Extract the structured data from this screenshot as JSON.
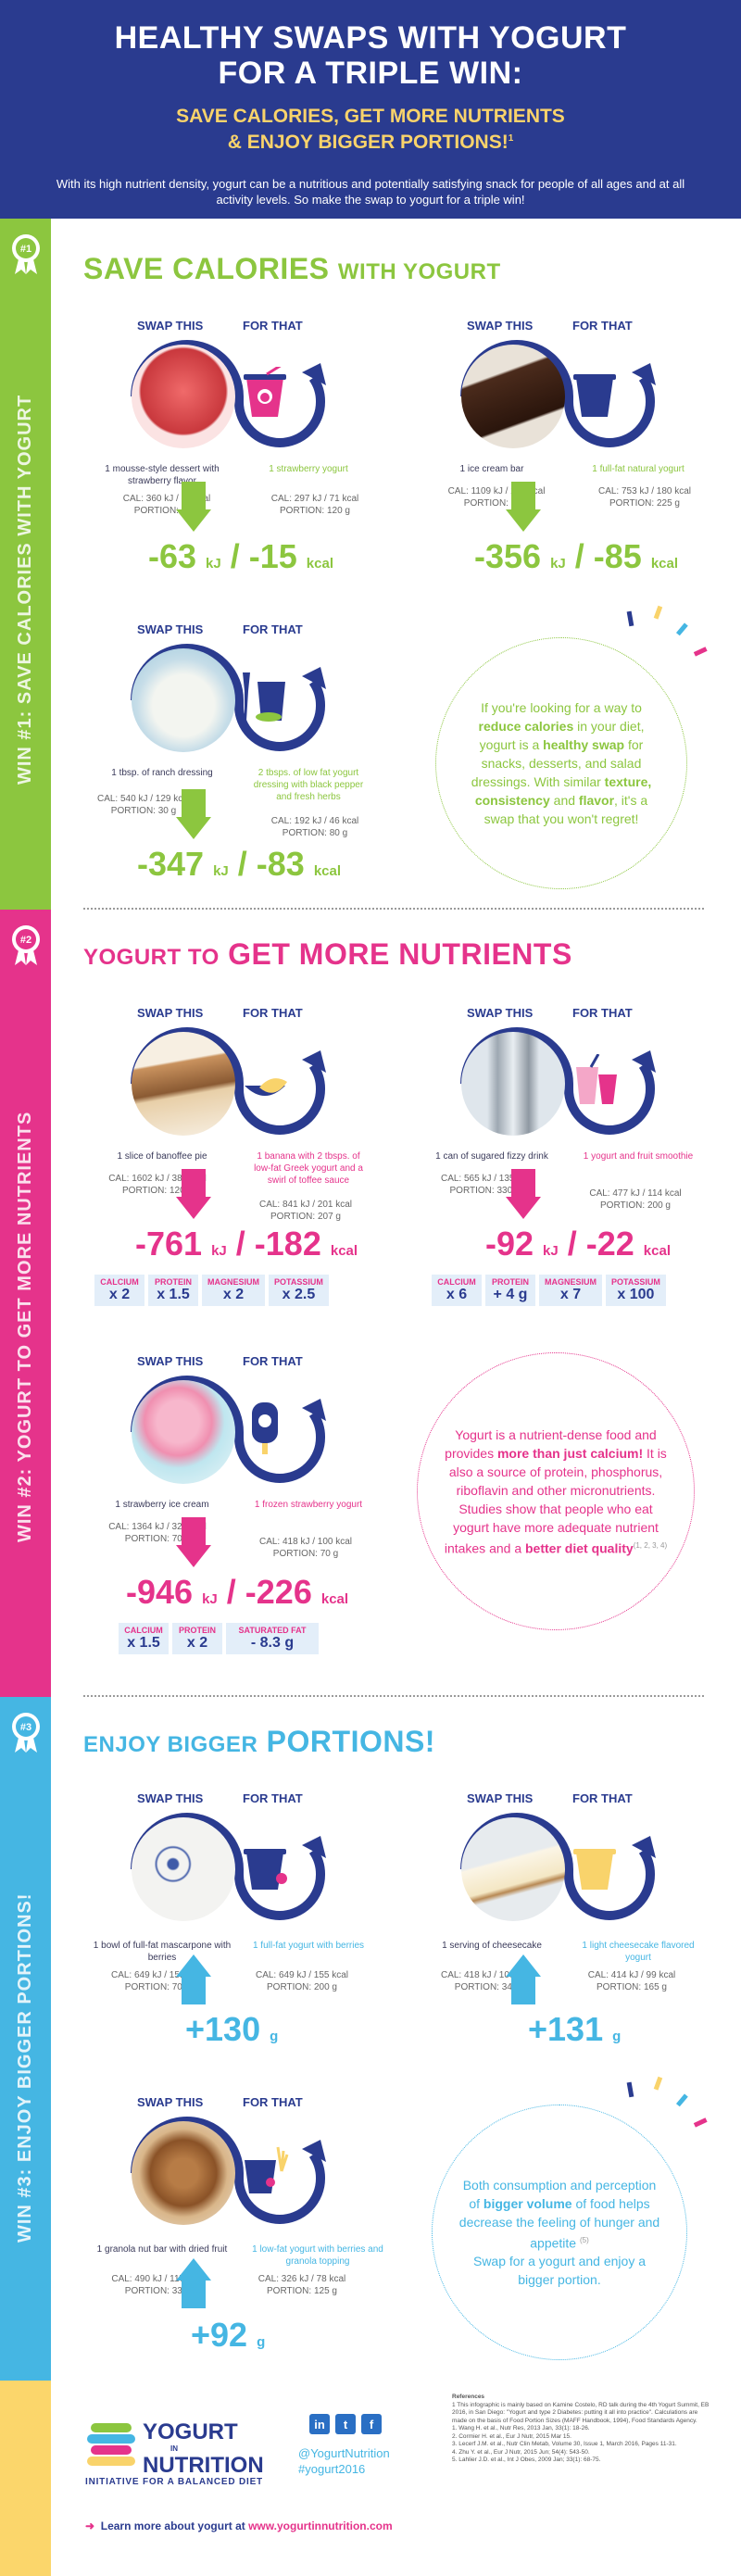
{
  "header": {
    "title_line1": "HEALTHY SWAPS WITH YOGURT",
    "title_line2": "FOR A TRIPLE WIN:",
    "subtitle_line1": "SAVE CALORIES, GET MORE NUTRIENTS",
    "subtitle_line2": "& ENJOY BIGGER PORTIONS!",
    "subtitle_sup": "1",
    "intro": "With its high nutrient density, yogurt can be a nutritious and potentially satisfying snack for people of all ages and at all activity levels. So make the swap to yogurt for a triple win!"
  },
  "labels": {
    "swap_this": "SWAP THIS",
    "for_that": "FOR THAT"
  },
  "sections": [
    {
      "badge": "#1",
      "sidebar": "WIN #1: SAVE CALORIES WITH YOGURT",
      "title_main": "SAVE CALORIES",
      "title_rest": "WITH YOGURT",
      "color": "#8cc63f",
      "swaps": [
        {
          "from": "1 mousse-style dessert with strawberry flavor",
          "to": "1 strawberry yogurt",
          "from_stats": [
            "CAL: 360 kJ / 86 kcal",
            "PORTION: 60 g"
          ],
          "to_stats": [
            "CAL: 297 kJ / 71 kcal",
            "PORTION: 120 g"
          ],
          "kj": "-63",
          "kcal": "-15"
        },
        {
          "from": "1 ice cream bar",
          "to": "1 full-fat natural yogurt",
          "from_stats": [
            "CAL: 1109 kJ / 265 kcal",
            "PORTION: 79 g"
          ],
          "to_stats": [
            "CAL: 753 kJ / 180 kcal",
            "PORTION: 225 g"
          ],
          "kj": "-356",
          "kcal": "-85"
        },
        {
          "from": "1 tbsp. of ranch dressing",
          "to": "2 tbsps. of low fat yogurt dressing with black pepper and fresh herbs",
          "from_stats": [
            "CAL: 540 kJ / 129 kcal",
            "PORTION: 30 g"
          ],
          "to_stats": [
            "CAL: 192 kJ / 46 kcal",
            "PORTION: 80 g"
          ],
          "kj": "-347",
          "kcal": "-83"
        }
      ],
      "circle": [
        "If you're looking for a way to ",
        "reduce calories",
        " in your diet, yogurt is a ",
        "healthy swap",
        " for snacks, desserts, and salad dressings. With similar ",
        "texture, consistency",
        " and ",
        "flavor",
        ", it's a swap that you won't regret!"
      ]
    },
    {
      "badge": "#2",
      "sidebar": "WIN #2: YOGURT TO GET MORE NUTRIENTS",
      "title_main": "YOGURT TO",
      "title_rest": "GET MORE NUTRIENTS",
      "color": "#e5338b",
      "swaps": [
        {
          "from": "1 slice of banoffee pie",
          "to": "1 banana with 2 tbsps. of low-fat Greek yogurt and a swirl of toffee sauce",
          "from_stats": [
            "CAL: 1602 kJ / 383 kcal",
            "PORTION: 120 g"
          ],
          "to_stats": [
            "CAL: 841 kJ / 201 kcal",
            "PORTION: 207 g"
          ],
          "kj": "-761",
          "kcal": "-182",
          "nutrients": [
            {
              "h": "CALCIUM",
              "v": "x 2"
            },
            {
              "h": "PROTEIN",
              "v": "x 1.5"
            },
            {
              "h": "MAGNESIUM",
              "v": "x 2"
            },
            {
              "h": "POTASSIUM",
              "v": "x 2.5"
            }
          ]
        },
        {
          "from": "1 can of sugared fizzy drink",
          "to": "1 yogurt and fruit smoothie",
          "from_stats": [
            "CAL: 565 kJ / 135 kcal",
            "PORTION: 330 ml"
          ],
          "to_stats": [
            "CAL: 477 kJ / 114 kcal",
            "PORTION: 200 g"
          ],
          "kj": "-92",
          "kcal": "-22",
          "nutrients": [
            {
              "h": "CALCIUM",
              "v": "x 6"
            },
            {
              "h": "PROTEIN",
              "v": "+ 4 g"
            },
            {
              "h": "MAGNESIUM",
              "v": "x 7"
            },
            {
              "h": "POTASSIUM",
              "v": "x 100"
            }
          ]
        },
        {
          "from": "1 strawberry ice cream",
          "to": "1 frozen strawberry yogurt",
          "from_stats": [
            "CAL: 1364 kJ / 326 kcal",
            "PORTION: 70 g"
          ],
          "to_stats": [
            "CAL: 418 kJ / 100 kcal",
            "PORTION: 70 g"
          ],
          "kj": "-946",
          "kcal": "-226",
          "nutrients": [
            {
              "h": "CALCIUM",
              "v": "x 1.5"
            },
            {
              "h": "PROTEIN",
              "v": "x 2"
            },
            {
              "h": "SATURATED FAT",
              "v": "- 8.3 g"
            }
          ]
        }
      ],
      "circle": [
        "Yogurt is a nutrient-dense food and provides ",
        "more than just calcium!",
        " It is also a source of protein, phosphorus, riboflavin and other micronutrients. Studies show that people who eat yogurt have more adequate nutrient intakes and a ",
        "better diet quality",
        ""
      ],
      "circle_sup": "(1, 2, 3, 4)"
    },
    {
      "badge": "#3",
      "sidebar": "WIN #3: ENJOY BIGGER PORTIONS!",
      "title_main": "ENJOY BIGGER",
      "title_rest": "PORTIONS!",
      "color": "#45b6e3",
      "swaps": [
        {
          "from": "1 bowl of full-fat mascarpone with berries",
          "to": "1 full-fat yogurt with berries",
          "from_stats": [
            "CAL: 649 kJ / 155 kcal",
            "PORTION: 70 g"
          ],
          "to_stats": [
            "CAL: 649 kJ / 155 kcal",
            "PORTION: 200 g"
          ],
          "gain": "+130"
        },
        {
          "from": "1 serving of cheesecake",
          "to": "1 light cheesecake flavored yogurt",
          "from_stats": [
            "CAL: 418 kJ / 100 kcal",
            "PORTION: 34 g"
          ],
          "to_stats": [
            "CAL: 414 kJ / 99 kcal",
            "PORTION: 165 g"
          ],
          "gain": "+131"
        },
        {
          "from": "1 granola nut bar with dried fruit",
          "to": "1 low-fat yogurt with berries and granola topping",
          "from_stats": [
            "CAL: 490 kJ / 117 kcal",
            "PORTION: 33 g"
          ],
          "to_stats": [
            "CAL: 326 kJ / 78 kcal",
            "PORTION: 125 g"
          ],
          "gain": "+92"
        }
      ],
      "circle": [
        "Both consumption and perception of ",
        "bigger volume",
        " of food helps decrease the feeling of hunger and appetite ",
        "",
        "(5)"
      ],
      "circle_tail": "Swap for a yogurt and enjoy a bigger portion."
    }
  ],
  "units": {
    "kj": "kJ",
    "kcal": "kcal",
    "g": "g"
  },
  "footer": {
    "logo_line1": "YOGURT",
    "logo_in": "IN",
    "logo_line2": "NUTRITION",
    "tagline": "INITIATIVE FOR A BALANCED DIET",
    "social": [
      "in",
      "t",
      "f"
    ],
    "handle": "@YogurtNutrition",
    "hashtag": "#yogurt2016",
    "learn_text": "Learn more about yogurt at ",
    "learn_url": "www.yogurtinnutrition.com",
    "refs_title": "References",
    "refs_intro": "1 This infographic is mainly based on Kamine Costelo, RD talk during the 4th Yogurt Summit, EB 2016, in San Diego: \"Yogurt and type 2 Diabetes: putting it all into practice\". Calculations are made on the basis of Food Portion Sizes (MAFF Handbook, 1994), Food Standards Agency.",
    "refs": [
      "1. Wang H. et al., Nutr Res, 2013 Jan, 33(1): 18-26.",
      "2. Cormier H. et al., Eur J Nutr, 2015 Mar 15.",
      "3. Lecerf J.M. et al., Nutr Clin Metab, Volume 30, Issue 1, March 2016, Pages 11-31.",
      "4. Zhu Y. et al., Eur J Nutr, 2015 Jun; 54(4): 543-50.",
      "5. Lahlier J.D. et al., Int J Obes, 2009 Jan; 33(1): 68-75."
    ]
  }
}
